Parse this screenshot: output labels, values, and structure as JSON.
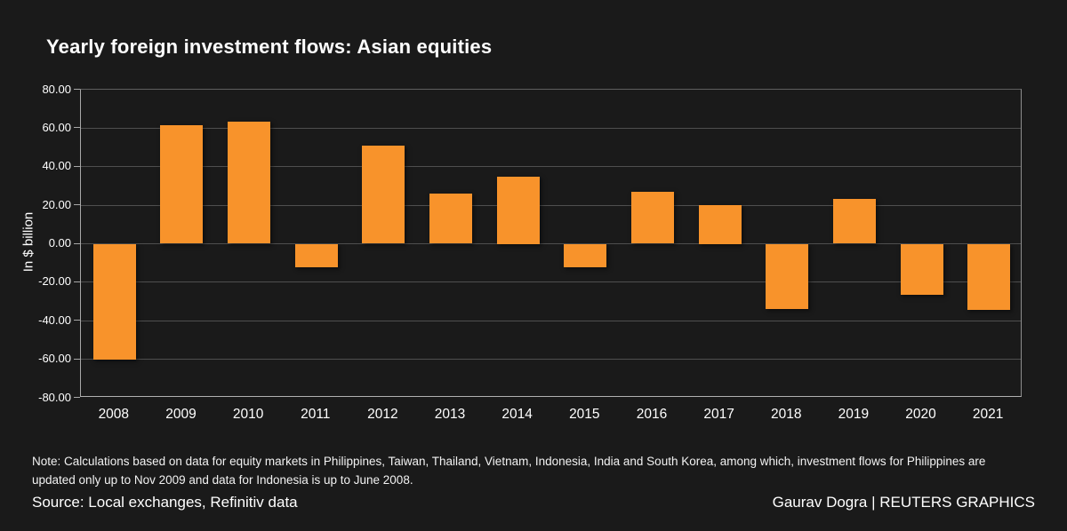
{
  "title": "Yearly foreign investment flows: Asian equities",
  "chart_data": {
    "type": "bar",
    "title": "Yearly foreign investment flows: Asian equities",
    "categories": [
      "2008",
      "2009",
      "2010",
      "2011",
      "2012",
      "2013",
      "2014",
      "2015",
      "2016",
      "2017",
      "2018",
      "2019",
      "2020",
      "2021"
    ],
    "values": [
      -60,
      61.5,
      63.5,
      -12,
      51,
      26,
      35,
      -12,
      27,
      20,
      -34,
      23.5,
      -26.5,
      -34.5
    ],
    "xlabel": "",
    "ylabel": "In $ billion",
    "ylim": [
      -80,
      80
    ],
    "ytick_step": 20,
    "ytick_decimals": 2,
    "grid": true,
    "legend": "none",
    "bar_color": "#f8932b"
  },
  "footer": {
    "note": "Note: Calculations based on data for equity markets in Philippines, Taiwan, Thailand, Vietnam, Indonesia, India and South Korea, among which, investment flows for Philippines are updated only up to Nov 2009 and data for Indonesia is up to June 2008.",
    "source": "Source: Local exchanges, Refinitiv data",
    "credit": "Gaurav Dogra | REUTERS GRAPHICS"
  },
  "colors": {
    "background": "#1a1a1a",
    "bar": "#f8932b",
    "gridline": "#4f4f4f",
    "axis": "#a8a8a8",
    "text": "#ffffff"
  }
}
